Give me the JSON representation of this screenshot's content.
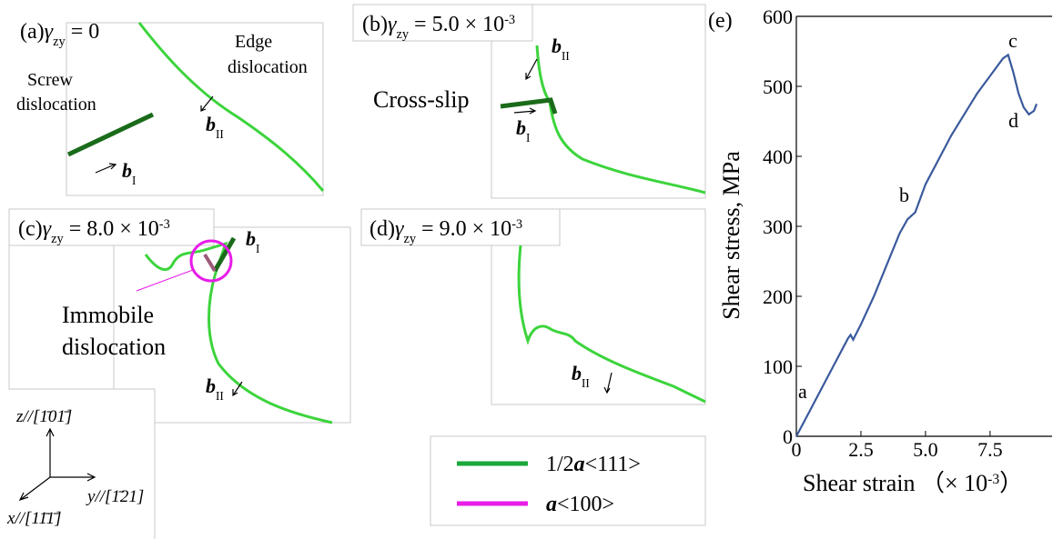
{
  "panels": [
    {
      "title": {
        "label": "(a)",
        "symbol": "γ",
        "sub": "zy",
        "eq": " = 0"
      },
      "screw": [
        "Screw",
        "dislocation"
      ],
      "edge": [
        "Edge",
        "dislocation"
      ],
      "burgers": [
        {
          "b": "b",
          "sub": "I"
        },
        {
          "b": "b",
          "sub": "II"
        }
      ]
    },
    {
      "title": {
        "label": "(b)",
        "symbol": "γ",
        "sub": "zy",
        "eq": " = 5.0 × 10",
        "exp": "-3"
      },
      "cross_slip": "Cross-slip",
      "burgers": [
        {
          "b": "b",
          "sub": "II"
        },
        {
          "b": "b",
          "sub": "I"
        }
      ]
    },
    {
      "title": {
        "label": "(c)",
        "symbol": "γ",
        "sub": "zy",
        "eq": " = 8.0 × 10",
        "exp": "-3"
      },
      "immobile": [
        "Immobile",
        "dislocation"
      ],
      "burgers": [
        {
          "b": "b",
          "sub": "I"
        },
        {
          "b": "b",
          "sub": "II"
        }
      ]
    },
    {
      "title": {
        "label": "(d)",
        "symbol": "γ",
        "sub": "zy",
        "eq": " = 9.0 × 10",
        "exp": "-3"
      },
      "burgers": [
        {
          "b": "b",
          "sub": "II"
        }
      ]
    }
  ],
  "axes_triad": {
    "z": "z//[1̄01̄]",
    "y": "y//[1̄21]",
    "x": "x//[11̄1̄]"
  },
  "legend": [
    {
      "pre": "1/2",
      "a": "a",
      "post": "<111>",
      "color": "#1aa83a"
    },
    {
      "a": "a",
      "post": "<100>",
      "color": "#e81ce8"
    }
  ],
  "chart_data": {
    "type": "line",
    "panel_label": "(e)",
    "y_label": "Shear stress, MPa",
    "x_label": "Shear strain （× 10",
    "x_label_exp": "-3",
    "x_label_end": "）",
    "x": [
      0,
      0.5,
      1,
      1.5,
      2,
      2.1,
      2.2,
      2.5,
      3,
      3.5,
      4,
      4.3,
      4.6,
      5,
      5.5,
      6,
      6.5,
      7,
      7.5,
      8,
      8.2,
      8.4,
      8.6,
      8.8,
      9,
      9.2,
      9.3
    ],
    "values": [
      0,
      35,
      70,
      105,
      140,
      145,
      138,
      160,
      200,
      245,
      290,
      310,
      320,
      360,
      395,
      430,
      460,
      490,
      515,
      540,
      545,
      520,
      490,
      470,
      460,
      465,
      475
    ],
    "color": "#3a5a9c",
    "xlim": [
      0,
      9.9
    ],
    "xticks": [
      0,
      2.5,
      {
        "value": 5,
        "label": "5.0"
      },
      7.5
    ],
    "ylim": [
      0,
      600
    ],
    "yticks": [
      0,
      100,
      200,
      300,
      400,
      500,
      600
    ],
    "annotations": [
      "a",
      "b",
      "c",
      "d"
    ]
  }
}
